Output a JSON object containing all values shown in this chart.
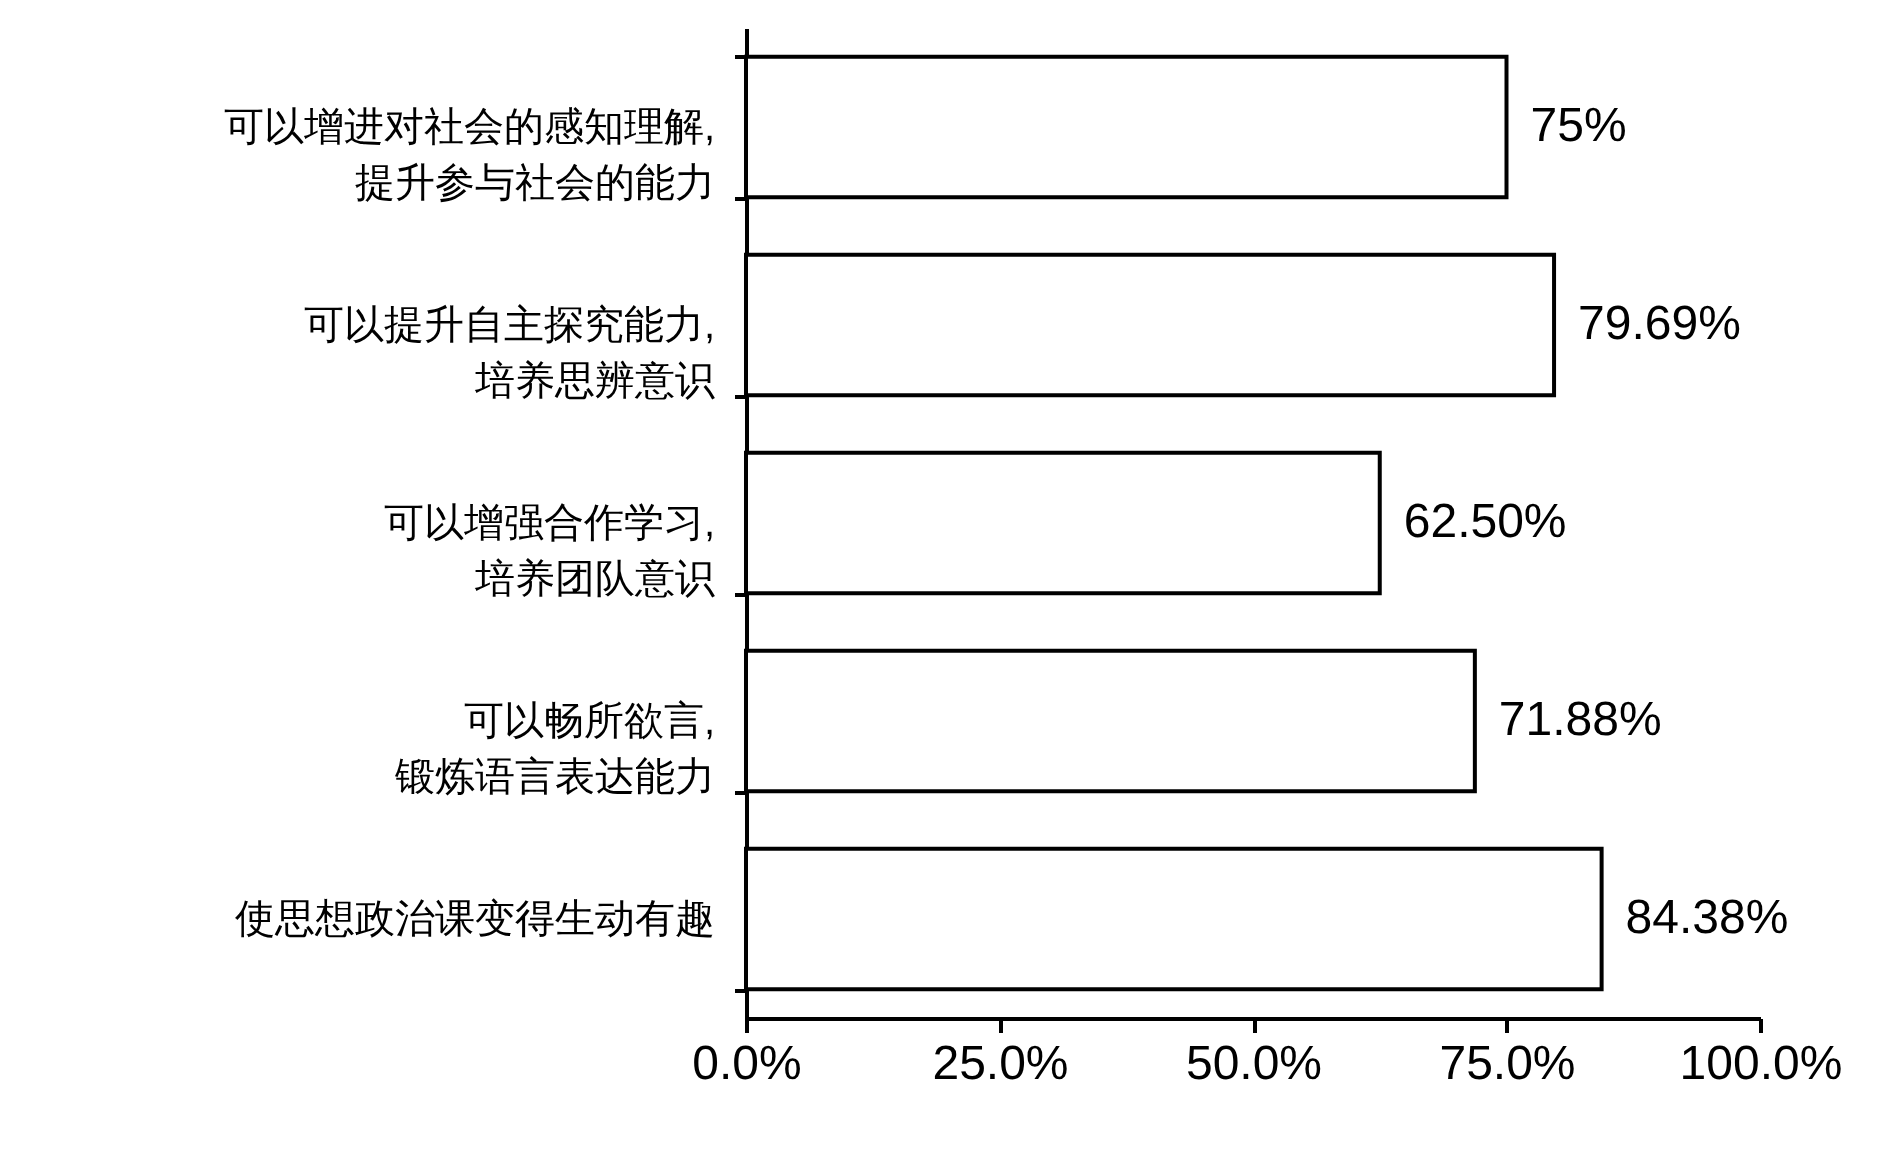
{
  "chart_data": {
    "type": "bar",
    "orientation": "horizontal",
    "categories": [
      "可以增进对社会的感知理解,\n提升参与社会的能力",
      "可以提升自主探究能力,\n培养思辨意识",
      "可以增强合作学习,\n培养团队意识",
      "可以畅所欲言,\n锻炼语言表达能力",
      "使思想政治课变得生动有趣"
    ],
    "values": [
      75,
      79.69,
      62.5,
      71.88,
      84.38
    ],
    "value_labels": [
      "75%",
      "79.69%",
      "62.50%",
      "71.88%",
      "84.38%"
    ],
    "color": "#ffffff",
    "xlim": [
      0,
      100
    ],
    "xticks": [
      {
        "value": 0,
        "label": "0.0%"
      },
      {
        "value": 25,
        "label": "25.0%"
      },
      {
        "value": 50,
        "label": "50.0%"
      },
      {
        "value": 75,
        "label": "75.0%"
      },
      {
        "value": 100,
        "label": "100.0%"
      }
    ],
    "grid": false
  }
}
